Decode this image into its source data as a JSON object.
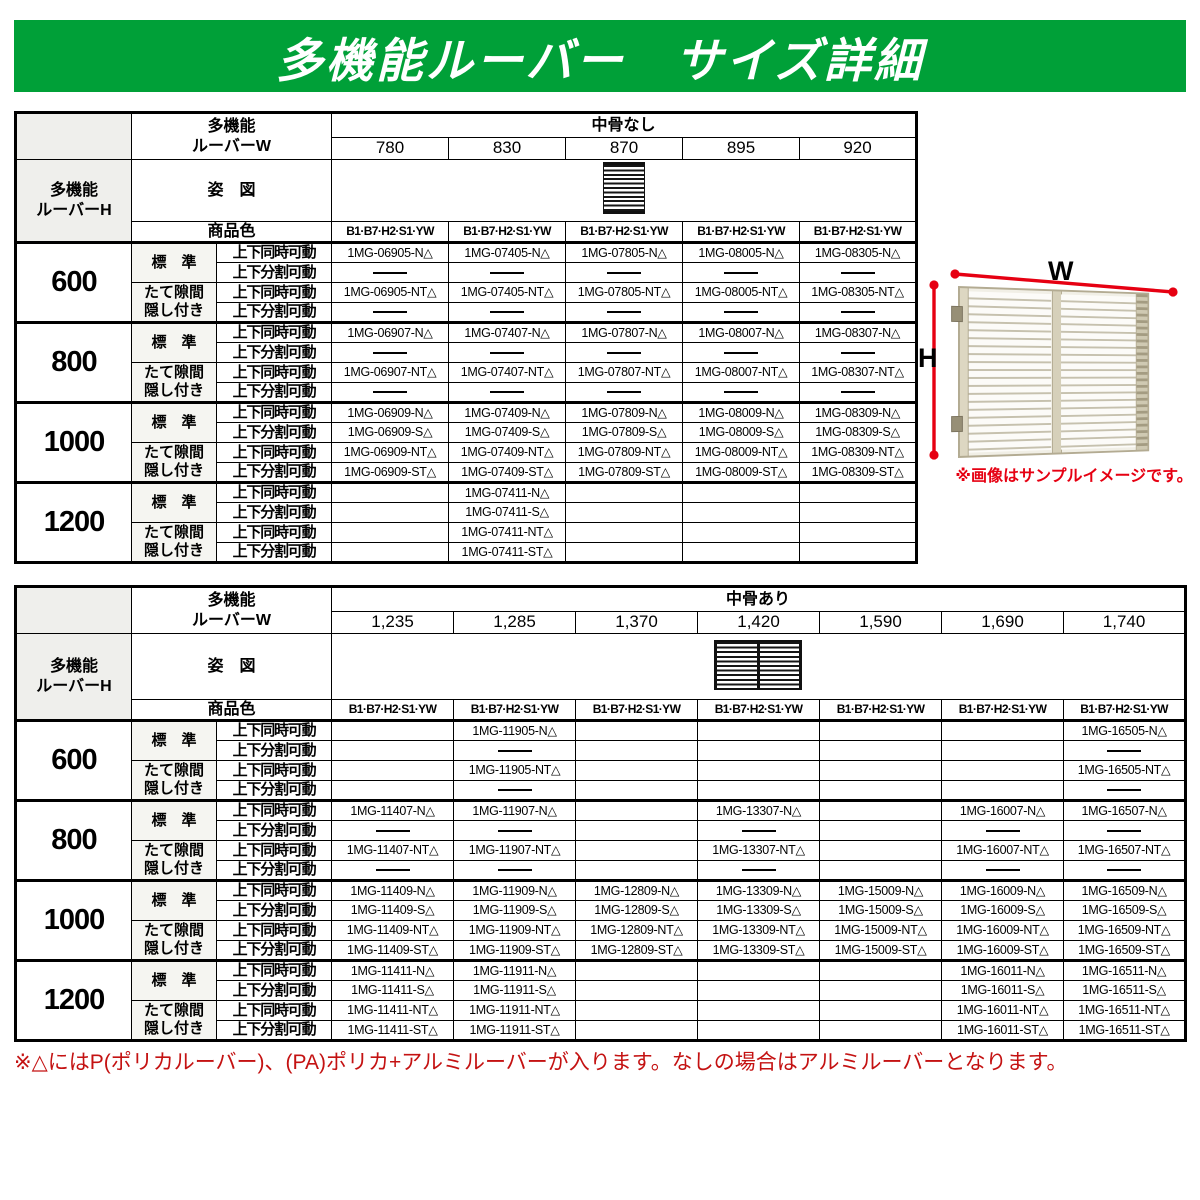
{
  "banner": {
    "title": "多機能ルーバー　サイズ詳細"
  },
  "colors": {
    "banner_green": "#00a038",
    "footnote_red": "#c41212",
    "caption_red": "#e60012",
    "dimension_red": "#e60012"
  },
  "shared_labels": {
    "w_header": "多機能\nルーバーW",
    "h_header": "多機能\nルーバーH",
    "figure_label": "姿　図",
    "color_label": "商品色",
    "color_codes": "B1·B7·H2·S1·YW",
    "group_standard": "標　準",
    "group_hidden": "たて隙間\n隠し付き",
    "row_simultaneous": "上下同時可動",
    "row_split": "上下分割可動"
  },
  "table1": {
    "name": "size-table-no-midrail",
    "bone_label": "中骨なし",
    "widths": [
      "780",
      "830",
      "870",
      "895",
      "920"
    ],
    "sections": [
      {
        "height": "600",
        "rows": [
          [
            "1MG-06905-N△",
            "1MG-07405-N△",
            "1MG-07805-N△",
            "1MG-08005-N△",
            "1MG-08305-N△"
          ],
          [
            "—",
            "—",
            "—",
            "—",
            "—"
          ],
          [
            "1MG-06905-NT△",
            "1MG-07405-NT△",
            "1MG-07805-NT△",
            "1MG-08005-NT△",
            "1MG-08305-NT△"
          ],
          [
            "—",
            "—",
            "—",
            "—",
            "—"
          ]
        ]
      },
      {
        "height": "800",
        "rows": [
          [
            "1MG-06907-N△",
            "1MG-07407-N△",
            "1MG-07807-N△",
            "1MG-08007-N△",
            "1MG-08307-N△"
          ],
          [
            "—",
            "—",
            "—",
            "—",
            "—"
          ],
          [
            "1MG-06907-NT△",
            "1MG-07407-NT△",
            "1MG-07807-NT△",
            "1MG-08007-NT△",
            "1MG-08307-NT△"
          ],
          [
            "—",
            "—",
            "—",
            "—",
            "—"
          ]
        ]
      },
      {
        "height": "1000",
        "rows": [
          [
            "1MG-06909-N△",
            "1MG-07409-N△",
            "1MG-07809-N△",
            "1MG-08009-N△",
            "1MG-08309-N△"
          ],
          [
            "1MG-06909-S△",
            "1MG-07409-S△",
            "1MG-07809-S△",
            "1MG-08009-S△",
            "1MG-08309-S△"
          ],
          [
            "1MG-06909-NT△",
            "1MG-07409-NT△",
            "1MG-07809-NT△",
            "1MG-08009-NT△",
            "1MG-08309-NT△"
          ],
          [
            "1MG-06909-ST△",
            "1MG-07409-ST△",
            "1MG-07809-ST△",
            "1MG-08009-ST△",
            "1MG-08309-ST△"
          ]
        ]
      },
      {
        "height": "1200",
        "rows": [
          [
            "",
            "1MG-07411-N△",
            "",
            "",
            ""
          ],
          [
            "",
            "1MG-07411-S△",
            "",
            "",
            ""
          ],
          [
            "",
            "1MG-07411-NT△",
            "",
            "",
            ""
          ],
          [
            "",
            "1MG-07411-ST△",
            "",
            "",
            ""
          ]
        ]
      }
    ]
  },
  "table2": {
    "name": "size-table-with-midrail",
    "bone_label": "中骨あり",
    "widths": [
      "1,235",
      "1,285",
      "1,370",
      "1,420",
      "1,590",
      "1,690",
      "1,740"
    ],
    "sections": [
      {
        "height": "600",
        "rows": [
          [
            "",
            "1MG-11905-N△",
            "",
            "",
            "",
            "",
            "1MG-16505-N△"
          ],
          [
            "",
            "—",
            "",
            "",
            "",
            "",
            "—"
          ],
          [
            "",
            "1MG-11905-NT△",
            "",
            "",
            "",
            "",
            "1MG-16505-NT△"
          ],
          [
            "",
            "—",
            "",
            "",
            "",
            "",
            "—"
          ]
        ]
      },
      {
        "height": "800",
        "rows": [
          [
            "1MG-11407-N△",
            "1MG-11907-N△",
            "",
            "1MG-13307-N△",
            "",
            "1MG-16007-N△",
            "1MG-16507-N△"
          ],
          [
            "—",
            "—",
            "",
            "—",
            "",
            "—",
            "—"
          ],
          [
            "1MG-11407-NT△",
            "1MG-11907-NT△",
            "",
            "1MG-13307-NT△",
            "",
            "1MG-16007-NT△",
            "1MG-16507-NT△"
          ],
          [
            "—",
            "—",
            "",
            "—",
            "",
            "—",
            "—"
          ]
        ]
      },
      {
        "height": "1000",
        "rows": [
          [
            "1MG-11409-N△",
            "1MG-11909-N△",
            "1MG-12809-N△",
            "1MG-13309-N△",
            "1MG-15009-N△",
            "1MG-16009-N△",
            "1MG-16509-N△"
          ],
          [
            "1MG-11409-S△",
            "1MG-11909-S△",
            "1MG-12809-S△",
            "1MG-13309-S△",
            "1MG-15009-S△",
            "1MG-16009-S△",
            "1MG-16509-S△"
          ],
          [
            "1MG-11409-NT△",
            "1MG-11909-NT△",
            "1MG-12809-NT△",
            "1MG-13309-NT△",
            "1MG-15009-NT△",
            "1MG-16009-NT△",
            "1MG-16509-NT△"
          ],
          [
            "1MG-11409-ST△",
            "1MG-11909-ST△",
            "1MG-12809-ST△",
            "1MG-13309-ST△",
            "1MG-15009-ST△",
            "1MG-16009-ST△",
            "1MG-16509-ST△"
          ]
        ]
      },
      {
        "height": "1200",
        "rows": [
          [
            "1MG-11411-N△",
            "1MG-11911-N△",
            "",
            "",
            "",
            "1MG-16011-N△",
            "1MG-16511-N△"
          ],
          [
            "1MG-11411-S△",
            "1MG-11911-S△",
            "",
            "",
            "",
            "1MG-16011-S△",
            "1MG-16511-S△"
          ],
          [
            "1MG-11411-NT△",
            "1MG-11911-NT△",
            "",
            "",
            "",
            "1MG-16011-NT△",
            "1MG-16511-NT△"
          ],
          [
            "1MG-11411-ST△",
            "1MG-11911-ST△",
            "",
            "",
            "",
            "1MG-16011-ST△",
            "1MG-16511-ST△"
          ]
        ]
      }
    ]
  },
  "sample_figure": {
    "width_label": "W",
    "height_label": "H",
    "caption": "※画像はサンプルイメージです。"
  },
  "footnote": "※△にはP(ポリカルーバー)、(PA)ポリカ+アルミルーバーが入ります。なしの場合はアルミルーバーとなります。"
}
